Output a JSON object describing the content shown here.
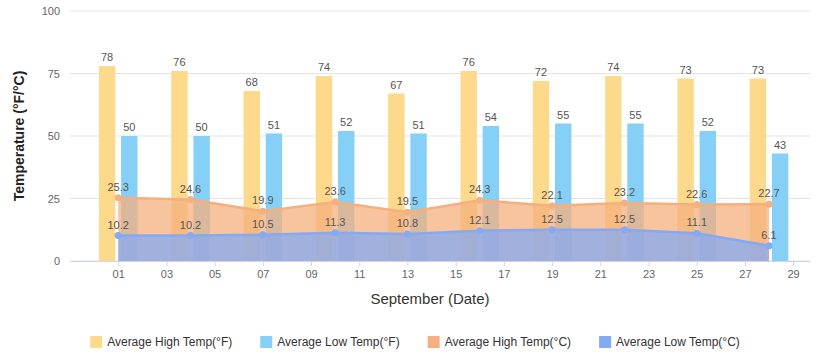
{
  "chart_data": {
    "type": "bar",
    "x_label": "September (Date)",
    "y_label": "Temperature (°F/°C)",
    "x": [
      1,
      4,
      7,
      10,
      13,
      16,
      19,
      22,
      25,
      28
    ],
    "series": [
      {
        "name": "Average High Temp(°F)",
        "type": "bar",
        "color": "#FDD98B",
        "values": [
          78,
          76,
          68,
          74,
          67,
          76,
          72,
          74,
          73,
          73
        ]
      },
      {
        "name": "Average Low Temp(°F)",
        "type": "bar",
        "color": "#86CFF6",
        "values": [
          50,
          50,
          51,
          52,
          51,
          54,
          55,
          55,
          52,
          43
        ]
      },
      {
        "name": "Average High Temp(°C)",
        "type": "area",
        "color": "#F4B07E",
        "values": [
          25.3,
          24.6,
          19.9,
          23.6,
          19.5,
          24.3,
          22.1,
          23.2,
          22.6,
          22.7
        ]
      },
      {
        "name": "Average Low Temp(°C)",
        "type": "area",
        "color": "#85A9F2",
        "values": [
          10.2,
          10.2,
          10.5,
          11.3,
          10.8,
          12.1,
          12.5,
          12.5,
          11.1,
          6.1
        ]
      }
    ],
    "xlim": [
      -1,
      29.7
    ],
    "xticks": [
      {
        "value": 1,
        "label": "01"
      },
      {
        "value": 3,
        "label": "03"
      },
      {
        "value": 5,
        "label": "05"
      },
      {
        "value": 7,
        "label": "07"
      },
      {
        "value": 9,
        "label": "09"
      },
      {
        "value": 11,
        "label": "11"
      },
      {
        "value": 13,
        "label": "13"
      },
      {
        "value": 15,
        "label": "15"
      },
      {
        "value": 17,
        "label": "17"
      },
      {
        "value": 19,
        "label": "19"
      },
      {
        "value": 21,
        "label": "21"
      },
      {
        "value": 23,
        "label": "23"
      },
      {
        "value": 25,
        "label": "25"
      },
      {
        "value": 27,
        "label": "27"
      },
      {
        "value": 29,
        "label": "29"
      }
    ],
    "ylim": [
      0,
      100
    ],
    "yticks": [
      0,
      25,
      50,
      75,
      100
    ],
    "grid": true,
    "data_labels": true,
    "legend": "bottom"
  }
}
